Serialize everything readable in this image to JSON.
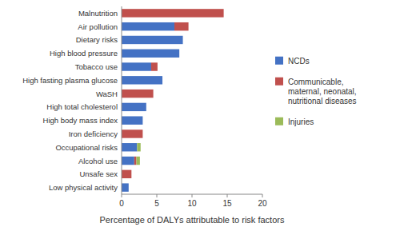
{
  "chart_data": {
    "type": "bar",
    "orientation": "horizontal",
    "stacked": true,
    "grid": false,
    "legend": "right",
    "xlabel": "Percentage of DALYs attributable to risk factors",
    "categories": [
      "Low physical activity",
      "Unsafe sex",
      "Alcohol use",
      "Occupational risks",
      "Iron deficiency",
      "High body mass index",
      "High total cholesterol",
      "WaSH",
      "High fasting plasma glucose",
      "Tobacco use",
      "High blood pressure",
      "Dietary risks",
      "Air pollution",
      "Malnutrition"
    ],
    "series": [
      {
        "name": "NCDs",
        "color": "#4472C4",
        "values": [
          1.0,
          0.0,
          1.8,
          2.2,
          0.0,
          3.0,
          3.5,
          0.0,
          5.8,
          4.2,
          8.2,
          8.7,
          7.5,
          0.0
        ]
      },
      {
        "name": "Communicable,\nmaternal, neonatal,\nnutritional diseases",
        "color": "#C0504D",
        "values": [
          0.0,
          1.4,
          0.3,
          0.0,
          3.0,
          0.0,
          0.0,
          4.5,
          0.0,
          0.9,
          0.0,
          0.0,
          2.0,
          14.5
        ]
      },
      {
        "name": "Injuries",
        "color": "#9BBB59",
        "values": [
          0.0,
          0.0,
          0.5,
          0.5,
          0.0,
          0.0,
          0.0,
          0.0,
          0.0,
          0.0,
          0.0,
          0.0,
          0.0,
          0.0
        ]
      }
    ],
    "xlim": [
      0,
      20
    ],
    "xticks": [
      0,
      5,
      10,
      15,
      20
    ]
  }
}
